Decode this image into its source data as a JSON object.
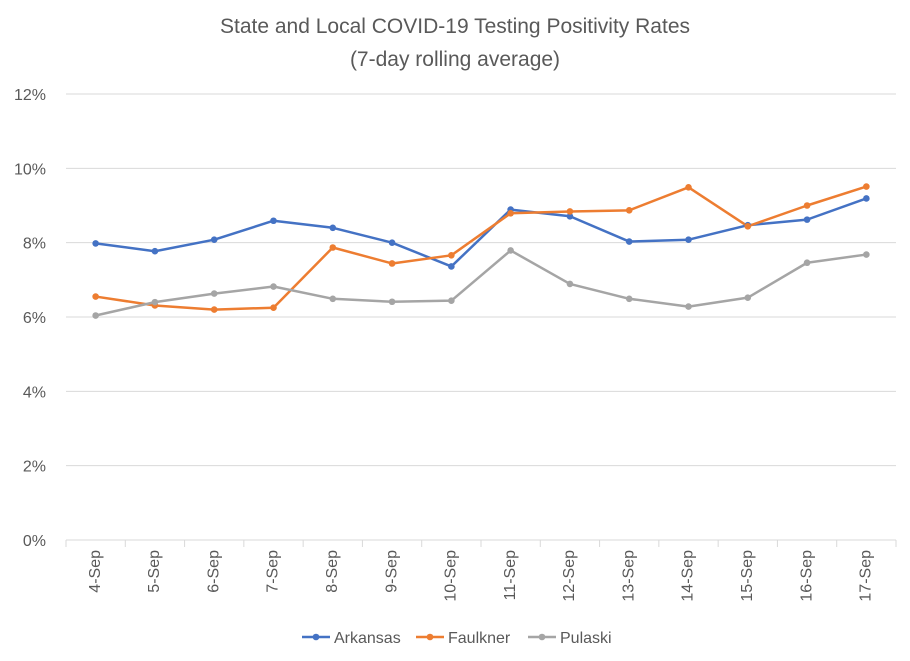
{
  "chart_data": {
    "type": "line",
    "title": "State and Local COVID-19 Testing Positivity Rates",
    "subtitle": "(7-day rolling average)",
    "xlabel": "",
    "ylabel": "",
    "categories": [
      "4-Sep",
      "5-Sep",
      "6-Sep",
      "7-Sep",
      "8-Sep",
      "9-Sep",
      "10-Sep",
      "11-Sep",
      "12-Sep",
      "13-Sep",
      "14-Sep",
      "15-Sep",
      "16-Sep",
      "17-Sep"
    ],
    "yticks": [
      0,
      2,
      4,
      6,
      8,
      10,
      12
    ],
    "ytick_labels": [
      "0%",
      "2%",
      "4%",
      "6%",
      "8%",
      "10%",
      "12%"
    ],
    "ylim": [
      0,
      12
    ],
    "grid": true,
    "legend_position": "bottom",
    "series": [
      {
        "name": "Arkansas",
        "color": "#4472C4",
        "values": [
          7.98,
          7.77,
          8.08,
          8.59,
          8.4,
          8.0,
          7.36,
          8.89,
          8.71,
          8.03,
          8.08,
          8.47,
          8.62,
          9.19
        ]
      },
      {
        "name": "Faulkner",
        "color": "#ED7D31",
        "values": [
          6.55,
          6.31,
          6.2,
          6.25,
          7.87,
          7.44,
          7.66,
          8.79,
          8.84,
          8.87,
          9.49,
          8.44,
          9.0,
          9.51
        ]
      },
      {
        "name": "Pulaski",
        "color": "#A5A5A5",
        "values": [
          6.04,
          6.4,
          6.63,
          6.82,
          6.49,
          6.41,
          6.44,
          7.79,
          6.89,
          6.49,
          6.28,
          6.52,
          7.46,
          7.68
        ]
      }
    ]
  }
}
